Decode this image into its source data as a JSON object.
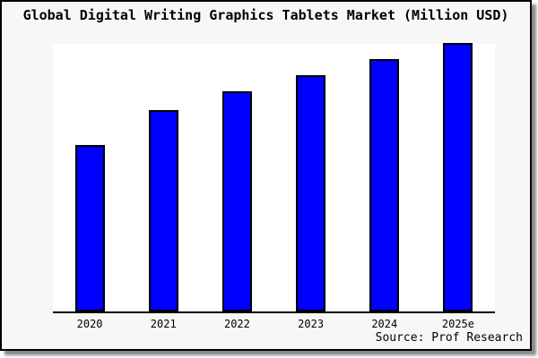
{
  "title": "Global Digital Writing Graphics Tablets Market (Million USD)",
  "source": {
    "label": "Source: Prof Research"
  },
  "colors": {
    "bar_fill": "#0000ff",
    "bar_border": "#000000",
    "frame_background": "#f7f7f7",
    "plot_background": "#ffffff",
    "axis": "#000000",
    "text": "#000000"
  },
  "chart_data": {
    "type": "bar",
    "title": "Global Digital Writing Graphics Tablets Market (Million USD)",
    "categories": [
      "2020",
      "2021",
      "2022",
      "2023",
      "2024",
      "2025e"
    ],
    "values": [
      62,
      75,
      82,
      88,
      94,
      100
    ],
    "value_units": "relative height, percent of tallest bar (no numeric y-axis shown)",
    "xlabel": "",
    "ylabel": "",
    "ylim": [
      0,
      100
    ],
    "grid": false,
    "legend": "none",
    "y_axis_labels_visible": false,
    "annotation": "Source: Prof Research"
  }
}
